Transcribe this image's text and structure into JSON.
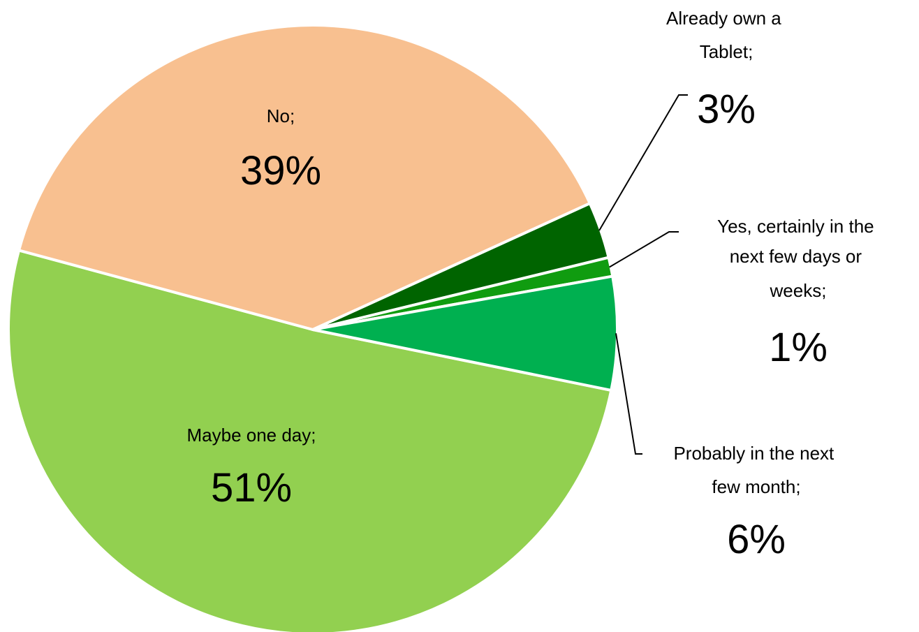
{
  "chart_data": {
    "type": "pie",
    "title": "",
    "slices": [
      {
        "label": "Maybe one day;",
        "value": 51,
        "value_text": "51%",
        "color": "#92d050"
      },
      {
        "label": "No;",
        "value": 39,
        "value_text": "39%",
        "color": "#f8c090"
      },
      {
        "label": "Already own a Tablet;",
        "value": 3,
        "value_text": "3%",
        "color": "#006400"
      },
      {
        "label": "Yes, certainly in the next few days or weeks;",
        "value": 1,
        "value_text": "1%",
        "color": "#109c10"
      },
      {
        "label": "Probably in the next few month;",
        "value": 6,
        "value_text": "6%",
        "color": "#00b050"
      }
    ],
    "label_format": "category; percentage",
    "legend": "none"
  }
}
